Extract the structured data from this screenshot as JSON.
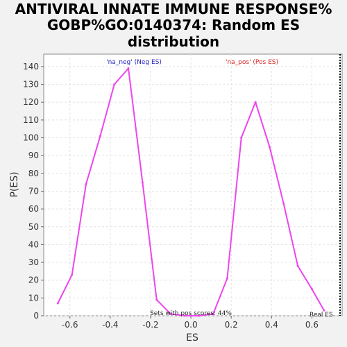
{
  "chart_data": {
    "type": "line",
    "title_lines": [
      "ANTIVIRAL INNATE IMMUNE RESPONSE%",
      "GOBP%GO:0140374: Random ES",
      "distribution"
    ],
    "xlabel": "ES",
    "ylabel": "P(ES)",
    "xlim": [
      -0.73,
      0.75
    ],
    "ylim": [
      0,
      147
    ],
    "xticks": [
      -0.6,
      -0.4,
      -0.2,
      0.0,
      0.2,
      0.4,
      0.6
    ],
    "xtick_labels": [
      "-0.6",
      "-0.4",
      "-0.2",
      "0.0",
      "0.2",
      "0.4",
      "0.6"
    ],
    "yticks": [
      0,
      10,
      20,
      30,
      40,
      50,
      60,
      70,
      80,
      90,
      100,
      110,
      120,
      130,
      140
    ],
    "ytick_labels": [
      "0",
      "10",
      "20",
      "30",
      "40",
      "50",
      "60",
      "70",
      "80",
      "90",
      "100",
      "110",
      "120",
      "130",
      "140"
    ],
    "grid": true,
    "series": [
      {
        "color": "#ee44ee",
        "x": [
          -0.66,
          -0.59,
          -0.52,
          -0.45,
          -0.38,
          -0.31,
          -0.24,
          -0.17,
          -0.1,
          -0.03,
          0.04,
          0.11,
          0.18,
          0.25,
          0.32,
          0.39,
          0.46,
          0.53,
          0.6,
          0.66
        ],
        "y": [
          7,
          23,
          74,
          101,
          130,
          139,
          75,
          9,
          1,
          0,
          0,
          1,
          21,
          100,
          120,
          95,
          63,
          28,
          15,
          3
        ]
      }
    ],
    "annotations": {
      "neg": {
        "text": "'na_neg' (Neg ES)",
        "color": "#2222bb"
      },
      "pos": {
        "text": "'na_pos' (Pos ES)",
        "color": "#dd2222"
      },
      "footer": {
        "text": "Sets with pos scores: 44%",
        "color": "#222222"
      },
      "real_es": {
        "text": "Real ES",
        "color": "#222222"
      }
    }
  }
}
